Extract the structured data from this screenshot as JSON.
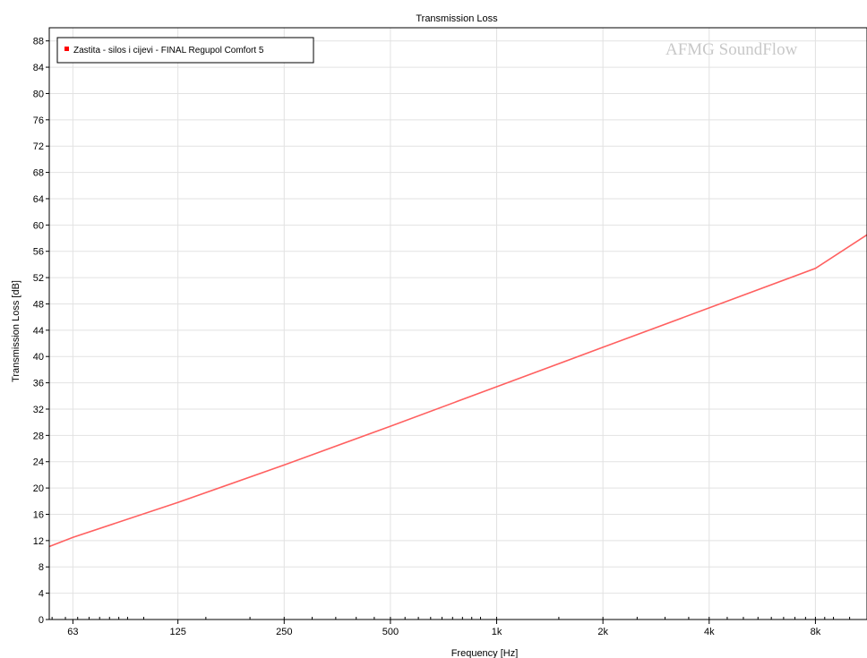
{
  "chart_data": {
    "type": "line",
    "title": "Transmission Loss",
    "xlabel": "Frequency [Hz]",
    "ylabel": "Transmission Loss [dB]",
    "x_scale": "log",
    "xlim": [
      54,
      11200
    ],
    "ylim": [
      0,
      90
    ],
    "x_ticks": [
      63,
      125,
      250,
      500,
      1000,
      2000,
      4000,
      8000
    ],
    "x_tick_labels": [
      "63",
      "125",
      "250",
      "500",
      "1k",
      "2k",
      "4k",
      "8k"
    ],
    "y_ticks": [
      0,
      4,
      8,
      12,
      16,
      20,
      24,
      28,
      32,
      36,
      40,
      44,
      48,
      52,
      56,
      60,
      64,
      68,
      72,
      76,
      80,
      84,
      88
    ],
    "grid": true,
    "legend_position": "top-left",
    "series": [
      {
        "name": "Zastita - silos i cijevi - FINAL Regupol Comfort 5",
        "color": "#ff6060",
        "x": [
          54,
          63,
          125,
          250,
          500,
          1000,
          2000,
          4000,
          8000,
          11200
        ],
        "y": [
          11.1,
          12.5,
          17.8,
          23.5,
          29.4,
          35.4,
          41.4,
          47.4,
          53.4,
          58.5
        ]
      }
    ],
    "watermark": "AFMG SoundFlow"
  }
}
